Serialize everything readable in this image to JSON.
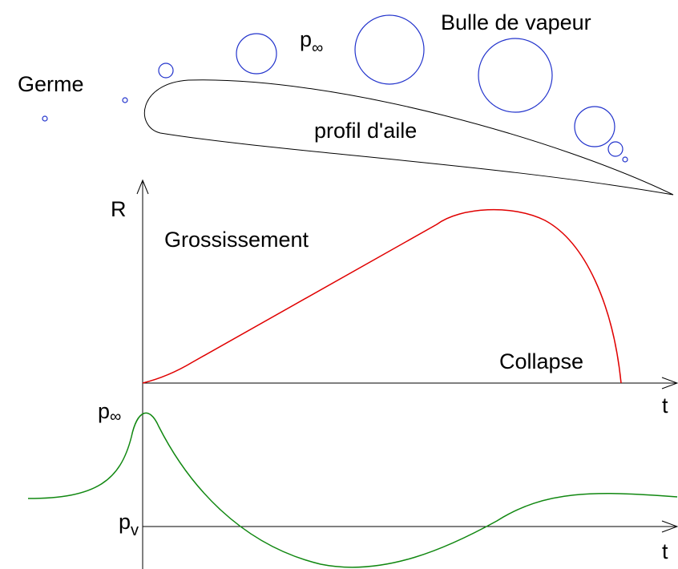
{
  "labels": {
    "bubble": "Bulle de vapeur",
    "p_inf_top": {
      "base": "p",
      "sub": "∞"
    },
    "germ": "Germe",
    "profile": "profil d'aile",
    "r_axis": "R",
    "growth": "Grossissement",
    "collapse": "Collapse",
    "t_axis_top": "t",
    "p_inf_bottom": {
      "base": "p",
      "sub": "∞"
    },
    "p_v": {
      "base": "p",
      "sub": "v"
    },
    "t_axis_bottom": "t"
  }
}
